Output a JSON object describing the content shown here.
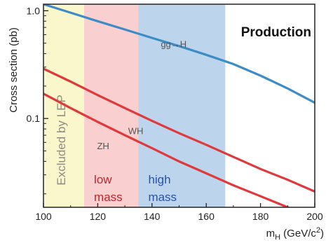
{
  "chart_data": {
    "type": "line",
    "title": "Production",
    "xlabel_main": "m",
    "xlabel_sub": "H",
    "xlabel_units": " (GeV/c",
    "xlabel_sup": "2",
    "xlabel_close": ")",
    "ylabel": "Cross section (pb)",
    "xlim": [
      100,
      200
    ],
    "ylim": [
      0.015,
      1.15
    ],
    "yscale": "log",
    "x_ticks": [
      100,
      120,
      140,
      160,
      180,
      200
    ],
    "y_ticks": [
      {
        "value": 1.0,
        "label": "1.0"
      },
      {
        "value": 0.1,
        "label": "0.1"
      }
    ],
    "bands": [
      {
        "name": "excluded",
        "x0": 100,
        "x1": 115,
        "color": "#fbf7cc",
        "label": "Excluded by LEP",
        "label_color": "#8d8d80"
      },
      {
        "name": "low-mass",
        "x0": 115,
        "x1": 135,
        "color": "#f9cfd0",
        "label_lines": [
          "low",
          "mass"
        ],
        "label_color": "#c0262d"
      },
      {
        "name": "high-mass",
        "x0": 135,
        "x1": 167,
        "color": "#bcd5ec",
        "label_lines": [
          "high",
          "mass"
        ],
        "label_color": "#2a52a6"
      }
    ],
    "series": [
      {
        "name": "gg→H",
        "color": "#3d8cc8",
        "x": [
          100,
          110,
          120,
          130,
          140,
          150,
          160,
          170,
          180,
          190,
          200
        ],
        "y": [
          1.15,
          0.96,
          0.8,
          0.67,
          0.56,
          0.47,
          0.39,
          0.32,
          0.25,
          0.19,
          0.14
        ]
      },
      {
        "name": "WH",
        "color": "#e0393c",
        "x": [
          100,
          110,
          120,
          130,
          140,
          150,
          160,
          170,
          180,
          190,
          200
        ],
        "y": [
          0.29,
          0.22,
          0.165,
          0.125,
          0.095,
          0.073,
          0.057,
          0.044,
          0.034,
          0.027,
          0.021
        ]
      },
      {
        "name": "ZH",
        "color": "#e0393c",
        "x": [
          100,
          110,
          120,
          130,
          140,
          150,
          160,
          170,
          180,
          190,
          200
        ],
        "y": [
          0.17,
          0.125,
          0.093,
          0.07,
          0.053,
          0.04,
          0.031,
          0.024,
          0.019,
          0.015,
          0.012
        ]
      }
    ],
    "grid": false
  }
}
